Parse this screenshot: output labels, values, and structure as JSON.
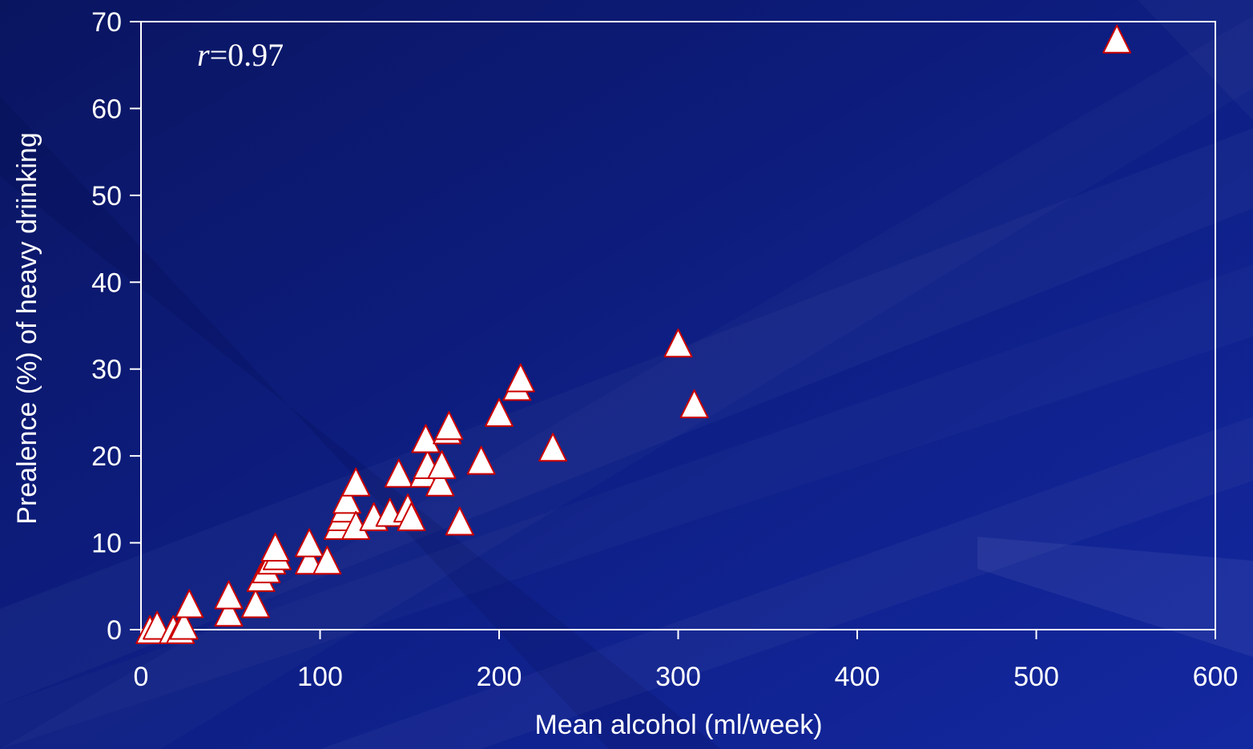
{
  "colors": {
    "background": "#0c1a72",
    "axes": "#ffffff",
    "marker_fill": "#ffffff",
    "marker_stroke": "#cc0000",
    "text": "#ffffff"
  },
  "chart_data": {
    "type": "scatter",
    "title": "",
    "xlabel": "Mean alcohol (ml/week)",
    "ylabel": "Prealence (%) of heavy driinking",
    "xlim": [
      0,
      600
    ],
    "ylim": [
      0,
      70
    ],
    "xticks": [
      "0",
      "100",
      "200",
      "300",
      "400",
      "500",
      "600"
    ],
    "yticks": [
      "0",
      "10",
      "20",
      "30",
      "40",
      "50",
      "60",
      "70"
    ],
    "grid": false,
    "legend": "none",
    "marker": "triangle",
    "annotation": {
      "italic": "r",
      "text": "=0.97"
    },
    "series": [
      {
        "points": [
          [
            5,
            0
          ],
          [
            9,
            0.5
          ],
          [
            18,
            0
          ],
          [
            22,
            0
          ],
          [
            24,
            0.5
          ],
          [
            27,
            3
          ],
          [
            49,
            2
          ],
          [
            49,
            4
          ],
          [
            64,
            3
          ],
          [
            67,
            6
          ],
          [
            70,
            7
          ],
          [
            73,
            8
          ],
          [
            76,
            8.5
          ],
          [
            75,
            9.5
          ],
          [
            94,
            8
          ],
          [
            94,
            10
          ],
          [
            104,
            8
          ],
          [
            110,
            12
          ],
          [
            112,
            13
          ],
          [
            114,
            14
          ],
          [
            115,
            15
          ],
          [
            120,
            12
          ],
          [
            120,
            17
          ],
          [
            130,
            13
          ],
          [
            139,
            13.5
          ],
          [
            144,
            18
          ],
          [
            149,
            14
          ],
          [
            151,
            13
          ],
          [
            158,
            18
          ],
          [
            160,
            19
          ],
          [
            159,
            22
          ],
          [
            167,
            17
          ],
          [
            168,
            19
          ],
          [
            171,
            23
          ],
          [
            172,
            23.5
          ],
          [
            178,
            12.5
          ],
          [
            190,
            19.5
          ],
          [
            200,
            25
          ],
          [
            210,
            28
          ],
          [
            212,
            29
          ],
          [
            230,
            21
          ],
          [
            300,
            33
          ],
          [
            309,
            26
          ],
          [
            545,
            68
          ]
        ]
      }
    ]
  }
}
